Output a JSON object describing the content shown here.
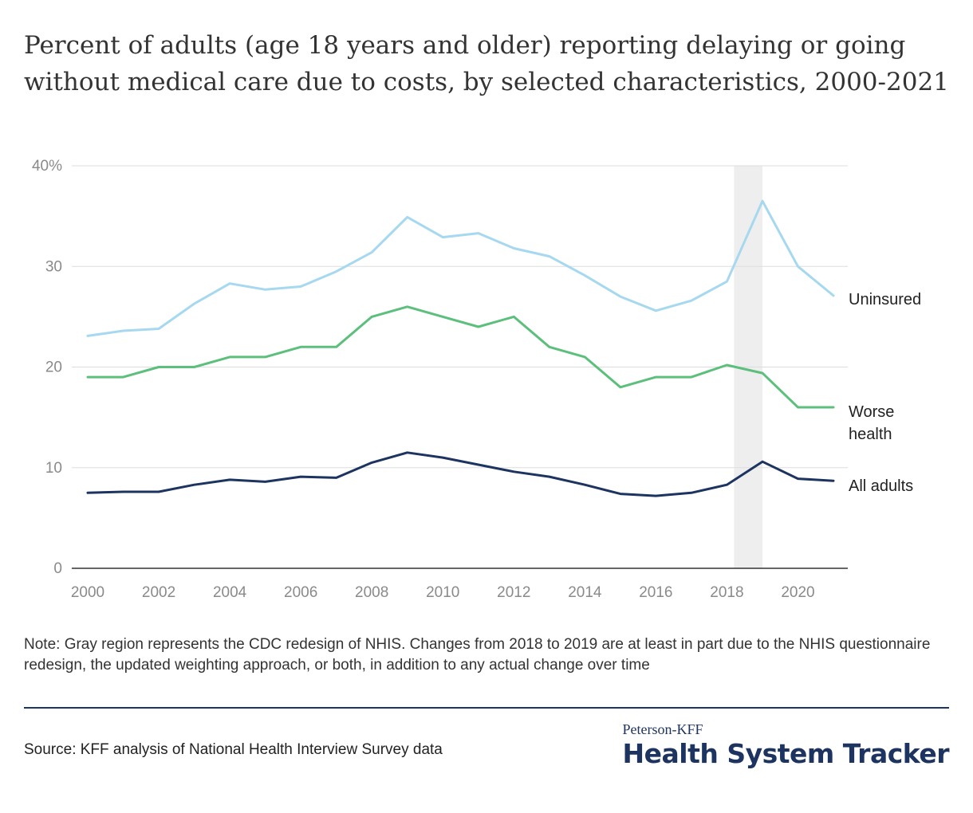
{
  "chart_data": {
    "type": "line",
    "title": "Percent of adults (age 18 years and older) reporting delaying or going without medical care due to costs, by selected characteristics, 2000-2021",
    "x": [
      2000,
      2001,
      2002,
      2003,
      2004,
      2005,
      2006,
      2007,
      2008,
      2009,
      2010,
      2011,
      2012,
      2013,
      2014,
      2015,
      2016,
      2017,
      2018,
      2019,
      2020,
      2021
    ],
    "xticks": [
      "2000",
      "2002",
      "2004",
      "2006",
      "2008",
      "2010",
      "2012",
      "2014",
      "2016",
      "2018",
      "2020"
    ],
    "yticks": [
      "0",
      "10",
      "20",
      "30",
      "40%"
    ],
    "ylim": [
      0,
      40
    ],
    "xlim": [
      2000,
      2021
    ],
    "grid": true,
    "shaded_region": [
      2018.2,
      2019
    ],
    "series": [
      {
        "name": "Uninsured",
        "color": "#a6d8f0",
        "values": [
          23.1,
          23.6,
          23.8,
          26.3,
          28.3,
          27.7,
          28.0,
          29.5,
          31.4,
          34.9,
          32.9,
          33.3,
          31.8,
          31.0,
          29.1,
          27.0,
          25.6,
          26.6,
          28.5,
          36.5,
          30.0,
          27.1
        ]
      },
      {
        "name": "Worse health",
        "name_lines": [
          "Worse",
          "health"
        ],
        "color": "#5cbf7c",
        "values": [
          19.0,
          19.0,
          20.0,
          20.0,
          21.0,
          21.0,
          22.0,
          22.0,
          25.0,
          26.0,
          25.0,
          24.0,
          25.0,
          22.0,
          21.0,
          18.0,
          19.0,
          19.0,
          20.2,
          19.4,
          16.0,
          16.0
        ]
      },
      {
        "name": "All adults",
        "color": "#1d3461",
        "values": [
          7.5,
          7.6,
          7.6,
          8.3,
          8.8,
          8.6,
          9.1,
          9.0,
          10.5,
          11.5,
          11.0,
          10.3,
          9.6,
          9.1,
          8.3,
          7.4,
          7.2,
          7.5,
          8.3,
          10.6,
          8.9,
          8.7
        ]
      }
    ]
  },
  "note": "Note: Gray region represents the CDC redesign of NHIS. Changes from 2018 to 2019 are at least in part due to the NHIS questionnaire redesign, the updated weighting approach, or both, in addition to any actual change over time",
  "source": "Source: KFF analysis of National Health Interview Survey data",
  "brand": {
    "small": "Peterson-KFF",
    "big": "Health System Tracker"
  }
}
